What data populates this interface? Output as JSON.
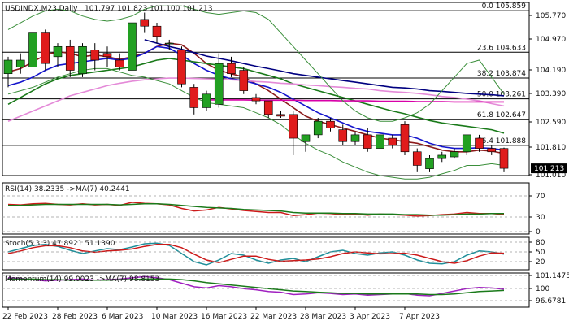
{
  "chart_data": [
    {
      "panel": "price",
      "type": "candlestick",
      "title": "USDINDX,M23,Daily",
      "ohlc_text": "101.797 101.823 101.100 101.213",
      "last_price_label": "101.213",
      "ylim": [
        101.0,
        106.1
      ],
      "y_ticks": [
        "105.770",
        "104.970",
        "104.190",
        "103.390",
        "102.590",
        "101.810",
        "101.010"
      ],
      "fib_levels": [
        {
          "label": "0.0 105.859",
          "value": 105.859
        },
        {
          "label": "23.6 104.633",
          "value": 104.633
        },
        {
          "label": "38.2 103.874",
          "value": 103.874
        },
        {
          "label": "50.0 103.261",
          "value": 103.261
        },
        {
          "label": "61.8 102.647",
          "value": 102.647
        },
        {
          "label": "76.4 101.888",
          "value": 101.888
        }
      ],
      "candles": [
        {
          "o": 104.0,
          "h": 104.5,
          "l": 103.6,
          "c": 104.4
        },
        {
          "o": 104.2,
          "h": 104.6,
          "l": 104.0,
          "c": 104.4
        },
        {
          "o": 104.2,
          "h": 105.3,
          "l": 104.1,
          "c": 105.2
        },
        {
          "o": 105.2,
          "h": 105.3,
          "l": 104.1,
          "c": 104.3
        },
        {
          "o": 104.5,
          "h": 104.9,
          "l": 104.2,
          "c": 104.8
        },
        {
          "o": 104.8,
          "h": 105.0,
          "l": 103.9,
          "c": 104.1
        },
        {
          "o": 104.0,
          "h": 104.9,
          "l": 103.9,
          "c": 104.8
        },
        {
          "o": 104.7,
          "h": 104.9,
          "l": 104.1,
          "c": 104.4
        },
        {
          "o": 104.6,
          "h": 104.8,
          "l": 104.2,
          "c": 104.5
        },
        {
          "o": 104.4,
          "h": 104.6,
          "l": 104.1,
          "c": 104.2
        },
        {
          "o": 104.1,
          "h": 105.6,
          "l": 104.0,
          "c": 105.5
        },
        {
          "o": 105.6,
          "h": 105.8,
          "l": 105.2,
          "c": 105.4
        },
        {
          "o": 105.4,
          "h": 105.5,
          "l": 104.9,
          "c": 105.1
        },
        {
          "o": 104.9,
          "h": 105.0,
          "l": 104.7,
          "c": 104.9
        },
        {
          "o": 104.7,
          "h": 104.8,
          "l": 103.6,
          "c": 103.7
        },
        {
          "o": 103.6,
          "h": 103.7,
          "l": 102.8,
          "c": 103.0
        },
        {
          "o": 103.0,
          "h": 103.5,
          "l": 102.9,
          "c": 103.4
        },
        {
          "o": 103.1,
          "h": 104.6,
          "l": 103.0,
          "c": 104.3
        },
        {
          "o": 104.3,
          "h": 104.5,
          "l": 103.9,
          "c": 104.0
        },
        {
          "o": 104.1,
          "h": 104.2,
          "l": 103.4,
          "c": 103.5
        },
        {
          "o": 103.3,
          "h": 103.4,
          "l": 103.1,
          "c": 103.2
        },
        {
          "o": 103.2,
          "h": 103.2,
          "l": 102.7,
          "c": 102.8
        },
        {
          "o": 102.8,
          "h": 102.9,
          "l": 102.7,
          "c": 102.75
        },
        {
          "o": 102.8,
          "h": 102.9,
          "l": 101.6,
          "c": 102.1
        },
        {
          "o": 102.0,
          "h": 102.2,
          "l": 101.7,
          "c": 102.2
        },
        {
          "o": 102.2,
          "h": 102.7,
          "l": 102.1,
          "c": 102.6
        },
        {
          "o": 102.6,
          "h": 102.7,
          "l": 102.3,
          "c": 102.4
        },
        {
          "o": 102.35,
          "h": 102.5,
          "l": 101.9,
          "c": 102.0
        },
        {
          "o": 102.0,
          "h": 102.3,
          "l": 101.9,
          "c": 102.2
        },
        {
          "o": 102.2,
          "h": 102.4,
          "l": 101.7,
          "c": 101.8
        },
        {
          "o": 101.8,
          "h": 102.2,
          "l": 101.7,
          "c": 102.2
        },
        {
          "o": 102.1,
          "h": 102.2,
          "l": 101.8,
          "c": 101.9
        },
        {
          "o": 102.5,
          "h": 102.6,
          "l": 101.6,
          "c": 101.7
        },
        {
          "o": 101.7,
          "h": 101.8,
          "l": 101.1,
          "c": 101.3
        },
        {
          "o": 101.2,
          "h": 101.6,
          "l": 101.1,
          "c": 101.5
        },
        {
          "o": 101.5,
          "h": 101.7,
          "l": 101.4,
          "c": 101.6
        },
        {
          "o": 101.55,
          "h": 101.8,
          "l": 101.5,
          "c": 101.7
        },
        {
          "o": 101.7,
          "h": 102.2,
          "l": 101.6,
          "c": 102.2
        },
        {
          "o": 102.1,
          "h": 102.2,
          "l": 101.7,
          "c": 101.8
        },
        {
          "o": 101.8,
          "h": 101.9,
          "l": 101.6,
          "c": 101.7
        },
        {
          "o": 101.797,
          "h": 101.823,
          "l": 101.1,
          "c": 101.213
        }
      ],
      "lines": [
        {
          "color": "#8b1a1a",
          "values": [
            104.05,
            104.15,
            104.35,
            104.55,
            104.65,
            104.6,
            104.5,
            104.55,
            104.5,
            104.42,
            104.5,
            104.6,
            104.8,
            104.9,
            104.85,
            104.6,
            104.3,
            104.1,
            104.0,
            103.9,
            103.7,
            103.5,
            103.25,
            103.0,
            102.75,
            102.6,
            102.5,
            102.4,
            102.3,
            102.2,
            102.1,
            102.05,
            102.0,
            101.95,
            101.85,
            101.75,
            101.7,
            101.7,
            101.75,
            101.72,
            101.65
          ]
        },
        {
          "color": "#1414cc",
          "values": [
            103.65,
            103.75,
            103.9,
            104.1,
            104.25,
            104.3,
            104.35,
            104.4,
            104.45,
            104.4,
            104.45,
            104.6,
            104.8,
            104.75,
            104.55,
            104.3,
            104.1,
            103.95,
            103.85,
            103.8,
            103.7,
            103.6,
            103.45,
            103.25,
            103.05,
            102.85,
            102.7,
            102.55,
            102.4,
            102.3,
            102.25,
            102.2,
            102.2,
            102.1,
            101.95,
            101.85,
            101.8,
            101.8,
            101.82,
            101.8,
            101.75
          ]
        },
        {
          "color": "#1a7a1a",
          "values": [
            103.1,
            103.3,
            103.5,
            103.7,
            103.85,
            103.95,
            104.0,
            104.05,
            104.1,
            104.15,
            104.2,
            104.3,
            104.4,
            104.45,
            104.4,
            104.35,
            104.3,
            104.25,
            104.2,
            104.15,
            104.05,
            103.95,
            103.85,
            103.7,
            103.6,
            103.5,
            103.4,
            103.3,
            103.2,
            103.1,
            103.0,
            102.9,
            102.82,
            102.72,
            102.62,
            102.55,
            102.5,
            102.45,
            102.4,
            102.35,
            102.25
          ]
        },
        {
          "color": "#000080",
          "values": [
            null,
            null,
            null,
            null,
            null,
            null,
            null,
            null,
            null,
            null,
            null,
            105.0,
            104.9,
            104.8,
            104.72,
            104.62,
            104.52,
            104.45,
            104.38,
            104.3,
            104.22,
            104.15,
            104.08,
            104.0,
            103.95,
            103.9,
            103.85,
            103.8,
            103.75,
            103.7,
            103.65,
            103.6,
            103.58,
            103.55,
            103.5,
            103.48,
            103.45,
            103.42,
            103.4,
            103.38,
            103.35
          ]
        },
        {
          "color": "#e48ad8",
          "values": [
            102.6,
            102.75,
            102.9,
            103.05,
            103.2,
            103.35,
            103.45,
            103.55,
            103.65,
            103.72,
            103.78,
            103.82,
            103.85,
            103.87,
            103.87,
            103.86,
            103.85,
            103.84,
            103.82,
            103.8,
            103.77,
            103.75,
            103.72,
            103.7,
            103.67,
            103.65,
            103.62,
            103.6,
            103.57,
            103.55,
            103.5,
            103.47,
            103.45,
            103.42,
            103.38,
            103.33,
            103.3,
            103.25,
            103.2,
            103.12,
            103.05
          ]
        },
        {
          "color": "#d800a8",
          "values": [
            null,
            null,
            null,
            null,
            null,
            null,
            null,
            null,
            null,
            null,
            null,
            null,
            null,
            null,
            null,
            null,
            103.23,
            103.23,
            103.23,
            103.23,
            103.22,
            103.22,
            103.22,
            103.22,
            103.21,
            103.21,
            103.21,
            103.2,
            103.2,
            103.2,
            103.19,
            103.19,
            103.19,
            103.18,
            103.18,
            103.18,
            103.17,
            103.17,
            103.17,
            103.17,
            103.17
          ]
        },
        {
          "color": "#3b8f3b",
          "values": [
            105.3,
            105.5,
            105.7,
            105.85,
            105.9,
            105.85,
            105.7,
            105.6,
            105.55,
            105.6,
            105.7,
            105.9,
            106.0,
            106.0,
            106.0,
            105.9,
            105.8,
            105.75,
            105.8,
            105.85,
            105.8,
            105.6,
            105.2,
            104.8,
            104.4,
            104.0,
            103.6,
            103.2,
            102.9,
            102.7,
            102.6,
            102.6,
            102.7,
            102.85,
            103.1,
            103.5,
            103.9,
            104.3,
            104.4,
            103.9,
            103.4
          ]
        },
        {
          "color": "#3b8f3b",
          "values": [
            103.4,
            103.5,
            103.6,
            103.75,
            103.9,
            104.0,
            104.1,
            104.15,
            104.15,
            104.05,
            103.95,
            103.9,
            103.8,
            103.7,
            103.5,
            103.3,
            103.15,
            103.1,
            103.05,
            103.0,
            102.85,
            102.7,
            102.5,
            102.2,
            101.95,
            101.75,
            101.6,
            101.4,
            101.25,
            101.1,
            101.0,
            100.95,
            100.9,
            100.9,
            100.95,
            101.05,
            101.15,
            101.3,
            101.3,
            101.35,
            101.3
          ]
        }
      ]
    },
    {
      "panel": "rsi",
      "type": "line",
      "title": "RSI(14) 38.2335 ->MA(7) 40.2441",
      "y_ticks": [
        "70",
        "30",
        "0"
      ],
      "ylim": [
        0,
        100
      ],
      "series": [
        {
          "color": "#cc1a1a",
          "values": [
            58,
            57,
            59,
            60,
            58,
            57,
            59,
            57,
            58,
            56,
            62,
            60,
            59,
            57,
            50,
            45,
            47,
            52,
            49,
            46,
            44,
            42,
            42,
            36,
            38,
            41,
            40,
            38,
            39,
            37,
            39,
            38,
            37,
            35,
            36,
            38,
            39,
            42,
            40,
            40,
            38.2
          ]
        },
        {
          "color": "#1a7a1a",
          "values": [
            56,
            56,
            57,
            58,
            58,
            58,
            58,
            58,
            58,
            57,
            58,
            59,
            59,
            58,
            56,
            54,
            52,
            51,
            50,
            48,
            47,
            46,
            45,
            42,
            41,
            41,
            41,
            40,
            40,
            39,
            39,
            39,
            38,
            38,
            37,
            37,
            38,
            39,
            39,
            40,
            40.2
          ]
        }
      ]
    },
    {
      "panel": "stoch",
      "type": "line",
      "title": "Stoch(5,3,3) 47.8921 51.1390",
      "y_ticks": [
        "80",
        "50",
        "20"
      ],
      "ylim": [
        0,
        100
      ],
      "series": [
        {
          "color": "#1f8f9a",
          "values": [
            55,
            65,
            75,
            78,
            72,
            60,
            50,
            58,
            65,
            62,
            70,
            80,
            82,
            75,
            50,
            25,
            15,
            30,
            50,
            45,
            30,
            20,
            30,
            35,
            25,
            40,
            55,
            60,
            50,
            45,
            52,
            55,
            45,
            30,
            20,
            18,
            25,
            45,
            58,
            55,
            47.9
          ]
        },
        {
          "color": "#cc1a1a",
          "values": [
            50,
            58,
            68,
            74,
            74,
            68,
            58,
            54,
            58,
            60,
            64,
            72,
            78,
            78,
            68,
            48,
            30,
            22,
            32,
            42,
            42,
            32,
            26,
            28,
            30,
            33,
            40,
            50,
            55,
            52,
            49,
            50,
            51,
            45,
            35,
            25,
            20,
            28,
            42,
            52,
            51.1
          ]
        }
      ]
    },
    {
      "panel": "momentum",
      "type": "line",
      "title": "Momentum(14) 99.0023 ->MA(7) 98.8153",
      "y_ticks": [
        "101.1475",
        "100",
        "96.6781"
      ],
      "ylim": [
        96.0,
        101.7
      ],
      "series": [
        {
          "color": "#a020c0",
          "values": [
            100.9,
            100.8,
            100.6,
            100.4,
            100.5,
            100.6,
            100.7,
            100.5,
            100.6,
            100.7,
            100.9,
            101.1,
            100.9,
            100.6,
            100.0,
            99.4,
            99.2,
            99.6,
            99.4,
            99.1,
            98.9,
            98.6,
            98.5,
            98.1,
            98.2,
            98.4,
            98.3,
            98.1,
            98.2,
            98.0,
            98.1,
            98.2,
            98.3,
            98.0,
            97.9,
            98.3,
            98.7,
            99.1,
            99.3,
            99.2,
            99.0
          ]
        },
        {
          "color": "#1a7a1a",
          "values": [
            100.7,
            100.7,
            100.7,
            100.6,
            100.6,
            100.5,
            100.5,
            100.5,
            100.5,
            100.6,
            100.6,
            100.7,
            100.7,
            100.7,
            100.6,
            100.4,
            100.1,
            99.9,
            99.7,
            99.5,
            99.3,
            99.1,
            98.9,
            98.7,
            98.6,
            98.5,
            98.4,
            98.3,
            98.3,
            98.2,
            98.2,
            98.2,
            98.2,
            98.2,
            98.1,
            98.1,
            98.2,
            98.4,
            98.6,
            98.7,
            98.8
          ]
        }
      ]
    }
  ],
  "x_axis": {
    "date_labels": [
      "22 Feb 2023",
      "28 Feb 2023",
      "6 Mar 2023",
      "10 Mar 2023",
      "16 Mar 2023",
      "22 Mar 2023",
      "28 Mar 2023",
      "3 Apr 2023",
      "7 Apr 2023"
    ],
    "date_label_bar_index": [
      0,
      4,
      8,
      12,
      16,
      20,
      24,
      28,
      32
    ]
  },
  "colors": {
    "bull": "#22a022",
    "bear": "#e01c1c",
    "fib": "#000000",
    "last_price_bg": "#000000",
    "last_price_fg": "#ffffff"
  }
}
